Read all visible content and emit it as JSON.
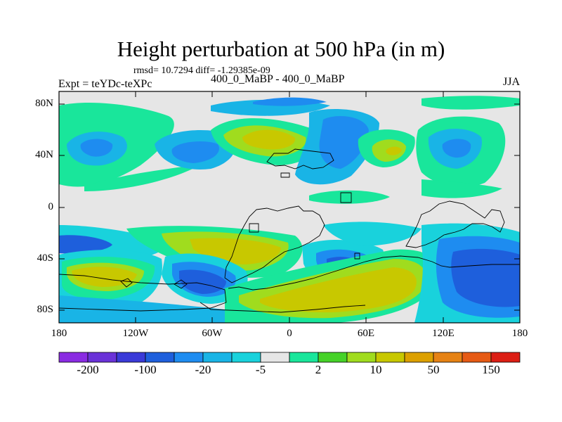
{
  "title": "Height perturbation at 500 hPa (in m)",
  "stats": "rmsd= 10.7294 diff= -1.29385e-09",
  "experiment": "Expt = teYDc-teXPc",
  "comparison": "400_0_MaBP - 400_0_MaBP",
  "season": "JJA",
  "axes": {
    "lat_labels": [
      "80N",
      "40N",
      "0",
      "40S",
      "80S"
    ],
    "lon_labels": [
      "180",
      "120W",
      "60W",
      "0",
      "60E",
      "120E",
      "180"
    ]
  },
  "colorbar": {
    "colors": [
      "#8a2be2",
      "#6a32d8",
      "#3a3ad8",
      "#1e5fdc",
      "#1e8cf0",
      "#19b4e6",
      "#19d2dc",
      "#e6e6e6",
      "#19e69b",
      "#46d228",
      "#a0dc1e",
      "#c8c800",
      "#dca000",
      "#e68214",
      "#e65a14",
      "#dc1e14"
    ],
    "labels": [
      "-200",
      "-100",
      "-20",
      "-5",
      "2",
      "10",
      "50",
      "150"
    ],
    "label_box_index": [
      1,
      3,
      5,
      7,
      9,
      11,
      13,
      15
    ]
  },
  "icons": {
    "map": "contour-map-icon"
  }
}
